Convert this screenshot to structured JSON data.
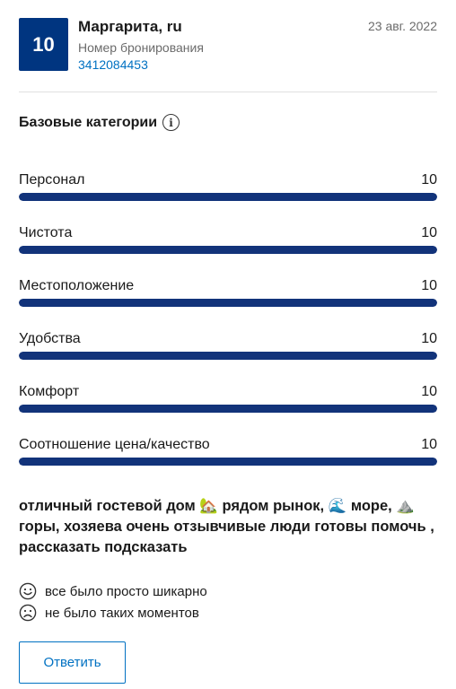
{
  "header": {
    "score": "10",
    "reviewer_name": "Маргарита, ru",
    "booking_label": "Номер бронирования",
    "booking_number": "3412084453",
    "date": "23 авг. 2022"
  },
  "categories_section": {
    "title": "Базовые категории",
    "info_icon": "info-icon",
    "items": [
      {
        "label": "Персонал",
        "score": "10",
        "fraction": 1.0
      },
      {
        "label": "Чистота",
        "score": "10",
        "fraction": 1.0
      },
      {
        "label": "Местоположение",
        "score": "10",
        "fraction": 1.0
      },
      {
        "label": "Удобства",
        "score": "10",
        "fraction": 1.0
      },
      {
        "label": "Комфорт",
        "score": "10",
        "fraction": 1.0
      },
      {
        "label": "Соотношение цена/качество",
        "score": "10",
        "fraction": 1.0
      }
    ]
  },
  "review": {
    "text": "отличный гостевой дом 🏡 рядом рынок, 🌊 море, ⛰️ горы, хозяева очень отзывчивые люди готовы помочь , рассказать подсказать",
    "positive": "все было просто шикарно",
    "negative": "не было таких моментов"
  },
  "actions": {
    "reply_label": "Ответить"
  },
  "colors": {
    "brand": "#003580",
    "bar_fill": "#12337a",
    "link": "#0071c2"
  }
}
